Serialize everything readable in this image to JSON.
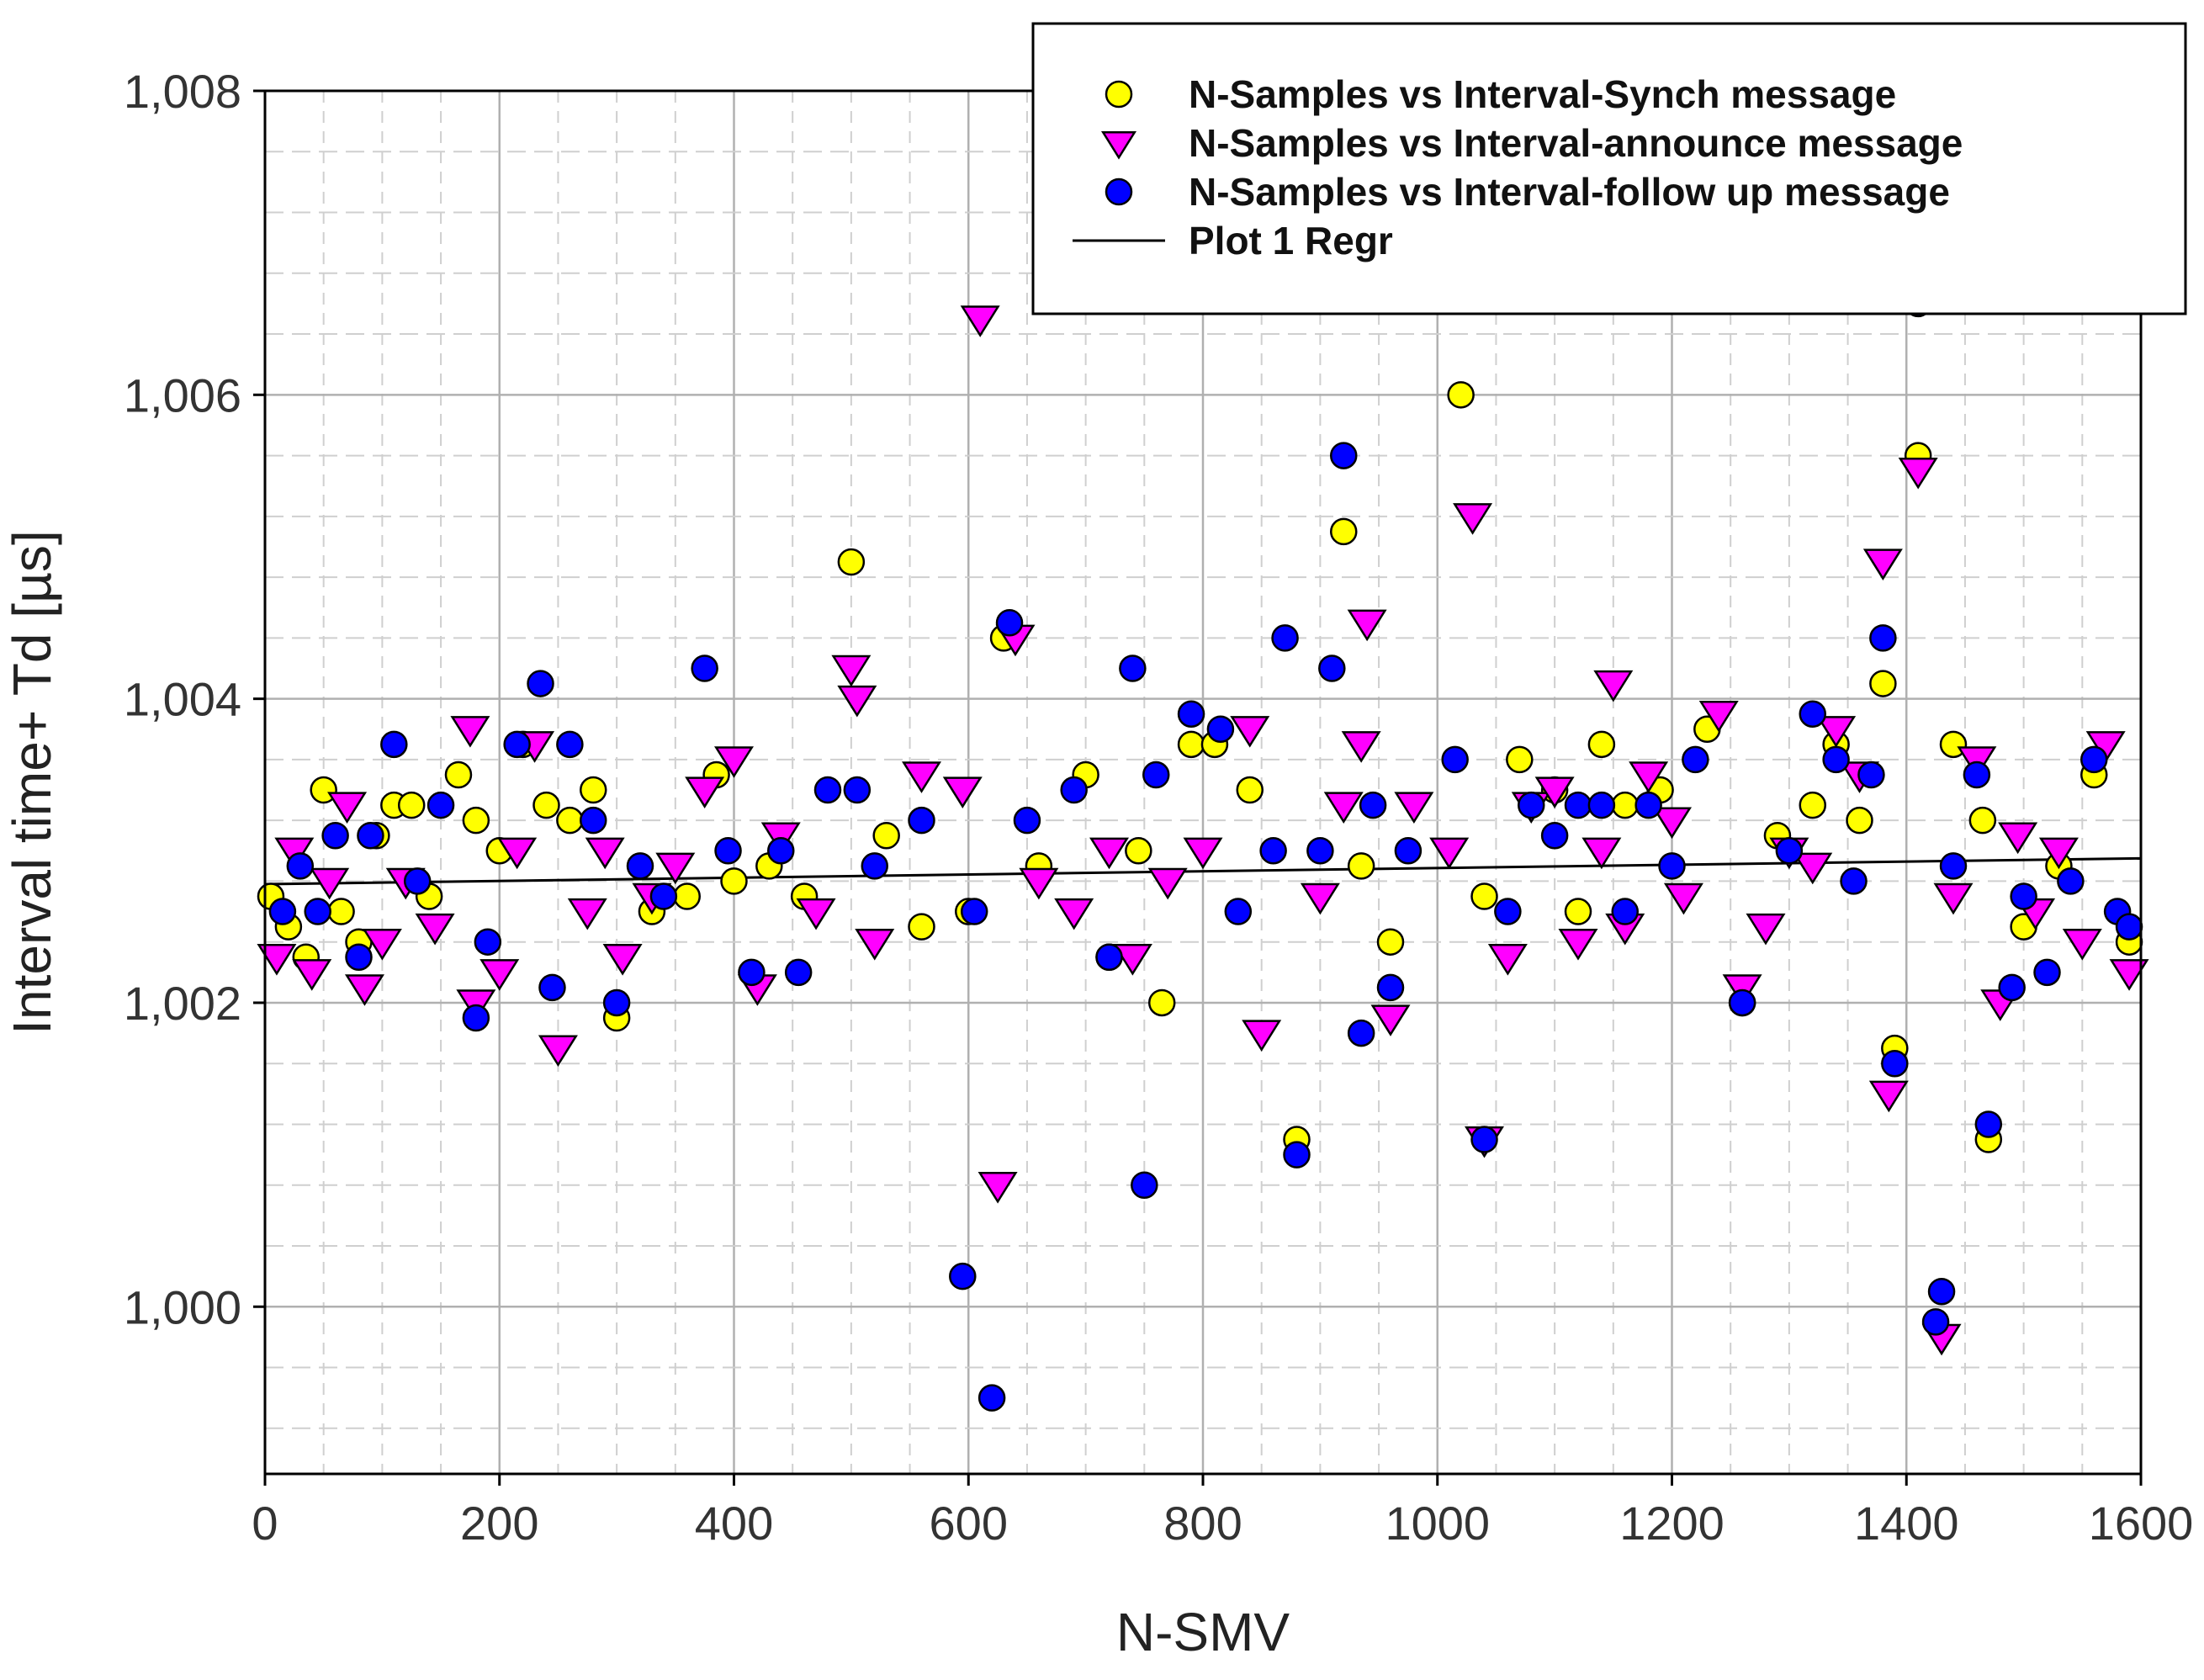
{
  "chart_data": {
    "type": "scatter",
    "title": "",
    "xlabel": "N-SMV",
    "ylabel": "Interval time+ Td [µs]",
    "xlim": [
      0,
      1600
    ],
    "ylim": [
      998.9,
      1008.0
    ],
    "x_ticks": [
      0,
      200,
      400,
      600,
      800,
      1000,
      1200,
      1400,
      1600
    ],
    "x_tick_labels": [
      "0",
      "200",
      "400",
      "600",
      "800",
      "1000",
      "1200",
      "1400",
      "1600"
    ],
    "y_ticks": [
      1000,
      1002,
      1004,
      1006,
      1008
    ],
    "y_tick_labels": [
      "1,000",
      "1,002",
      "1,004",
      "1,006",
      "1,008"
    ],
    "grid": true,
    "legend_position": "top-right",
    "series": [
      {
        "name": "N-Samples vs Interval-Synch message",
        "marker": "circle",
        "color": "#ffff00",
        "x": [
          5,
          20,
          35,
          50,
          65,
          80,
          95,
          110,
          125,
          140,
          165,
          180,
          200,
          220,
          240,
          260,
          280,
          300,
          330,
          360,
          385,
          400,
          430,
          460,
          500,
          530,
          560,
          600,
          630,
          660,
          700,
          720,
          745,
          765,
          790,
          810,
          840,
          880,
          920,
          935,
          960,
          1020,
          1040,
          1070,
          1100,
          1120,
          1140,
          1160,
          1190,
          1230,
          1260,
          1290,
          1320,
          1340,
          1360,
          1380,
          1390,
          1410,
          1440,
          1465,
          1470,
          1500,
          1530,
          1560,
          1590
        ],
        "y": [
          1002.7,
          1002.5,
          1002.3,
          1003.4,
          1002.6,
          1002.4,
          1003.1,
          1003.3,
          1003.3,
          1002.7,
          1003.5,
          1003.2,
          1003.0,
          1003.7,
          1003.3,
          1003.2,
          1003.4,
          1001.9,
          1002.6,
          1002.7,
          1003.5,
          1002.8,
          1002.9,
          1002.7,
          1004.9,
          1003.1,
          1002.5,
          1002.6,
          1004.4,
          1002.9,
          1003.5,
          1002.3,
          1003.0,
          1002.0,
          1003.7,
          1003.7,
          1003.4,
          1001.1,
          1005.1,
          1002.9,
          1002.4,
          1006.0,
          1002.7,
          1003.6,
          1003.4,
          1002.6,
          1003.7,
          1003.3,
          1003.4,
          1003.8,
          1002.0,
          1003.1,
          1003.3,
          1003.7,
          1003.2,
          1004.1,
          1001.7,
          1005.6,
          1003.7,
          1003.2,
          1001.1,
          1002.5,
          1002.9,
          1003.5,
          1002.4
        ]
      },
      {
        "name": "N-Samples vs Interval-announce message",
        "marker": "triangle-down",
        "color": "#ff00ff",
        "x": [
          10,
          25,
          40,
          55,
          70,
          85,
          100,
          120,
          145,
          175,
          180,
          200,
          215,
          230,
          250,
          275,
          290,
          305,
          330,
          350,
          375,
          400,
          420,
          440,
          470,
          500,
          505,
          520,
          560,
          595,
          610,
          625,
          640,
          660,
          690,
          720,
          740,
          770,
          800,
          840,
          850,
          900,
          920,
          935,
          940,
          960,
          980,
          1010,
          1030,
          1040,
          1060,
          1080,
          1100,
          1120,
          1140,
          1150,
          1160,
          1180,
          1200,
          1210,
          1240,
          1260,
          1280,
          1300,
          1320,
          1340,
          1360,
          1380,
          1385,
          1410,
          1430,
          1440,
          1460,
          1480,
          1495,
          1510,
          1530,
          1550,
          1570,
          1590
        ],
        "y": [
          1002.3,
          1003.0,
          1002.2,
          1002.8,
          1003.3,
          1002.1,
          1002.4,
          1002.8,
          1002.5,
          1003.8,
          1002.0,
          1002.2,
          1003.0,
          1003.7,
          1001.7,
          1002.6,
          1003.0,
          1002.3,
          1002.7,
          1002.9,
          1003.4,
          1003.6,
          1002.1,
          1003.1,
          1002.6,
          1004.2,
          1004.0,
          1002.4,
          1003.5,
          1003.4,
          1006.5,
          1000.8,
          1004.4,
          1002.8,
          1002.6,
          1003.0,
          1002.3,
          1002.8,
          1003.0,
          1003.8,
          1001.8,
          1002.7,
          1003.3,
          1003.7,
          1004.5,
          1001.9,
          1003.3,
          1003.0,
          1005.2,
          1001.1,
          1002.3,
          1003.3,
          1003.4,
          1002.4,
          1003.0,
          1004.1,
          1002.5,
          1003.5,
          1003.2,
          1002.7,
          1003.9,
          1002.1,
          1002.5,
          1003.0,
          1002.9,
          1003.8,
          1003.5,
          1004.9,
          1001.4,
          1005.5,
          999.8,
          1002.7,
          1003.6,
          1002.0,
          1003.1,
          1002.6,
          1003.0,
          1002.4,
          1003.7,
          1002.2
        ]
      },
      {
        "name": "N-Samples vs Interval-follow up message",
        "marker": "circle",
        "color": "#0000ff",
        "x": [
          15,
          30,
          45,
          60,
          80,
          90,
          110,
          130,
          150,
          180,
          190,
          215,
          235,
          245,
          260,
          280,
          300,
          320,
          340,
          375,
          395,
          415,
          440,
          455,
          480,
          505,
          520,
          560,
          595,
          605,
          620,
          635,
          650,
          690,
          720,
          740,
          750,
          760,
          790,
          815,
          830,
          860,
          870,
          880,
          900,
          910,
          920,
          935,
          945,
          960,
          975,
          1015,
          1040,
          1060,
          1080,
          1100,
          1120,
          1140,
          1160,
          1180,
          1200,
          1220,
          1260,
          1300,
          1320,
          1340,
          1355,
          1370,
          1380,
          1390,
          1410,
          1425,
          1430,
          1440,
          1460,
          1470,
          1490,
          1500,
          1520,
          1540,
          1560,
          1580,
          1590
        ],
        "y": [
          1002.6,
          1002.9,
          1002.6,
          1003.1,
          1002.3,
          1003.1,
          1003.7,
          1002.8,
          1003.3,
          1001.9,
          1002.4,
          1003.7,
          1004.1,
          1002.1,
          1003.7,
          1003.2,
          1002.0,
          1002.9,
          1002.7,
          1004.2,
          1003.0,
          1002.2,
          1003.0,
          1002.2,
          1003.4,
          1003.4,
          1002.9,
          1003.2,
          1000.2,
          1002.6,
          999.4,
          1004.5,
          1003.2,
          1003.4,
          1002.3,
          1004.2,
          1000.8,
          1003.5,
          1003.9,
          1003.8,
          1002.6,
          1003.0,
          1004.4,
          1001.0,
          1003.0,
          1004.2,
          1005.6,
          1001.8,
          1003.3,
          1002.1,
          1003.0,
          1003.6,
          1001.1,
          1002.6,
          1003.3,
          1003.1,
          1003.3,
          1003.3,
          1002.6,
          1003.3,
          1002.9,
          1003.6,
          1002.0,
          1003.0,
          1003.9,
          1003.6,
          1002.8,
          1003.5,
          1004.4,
          1001.6,
          1006.6,
          999.9,
          1000.1,
          1002.9,
          1003.5,
          1001.2,
          1002.1,
          1002.7,
          1002.2,
          1002.8,
          1003.6,
          1002.6,
          1002.5
        ]
      },
      {
        "name": "Plot 1 Regr",
        "marker": "line",
        "color": "#000000",
        "x": [
          0,
          1600
        ],
        "y": [
          1002.78,
          1002.95
        ]
      }
    ]
  }
}
